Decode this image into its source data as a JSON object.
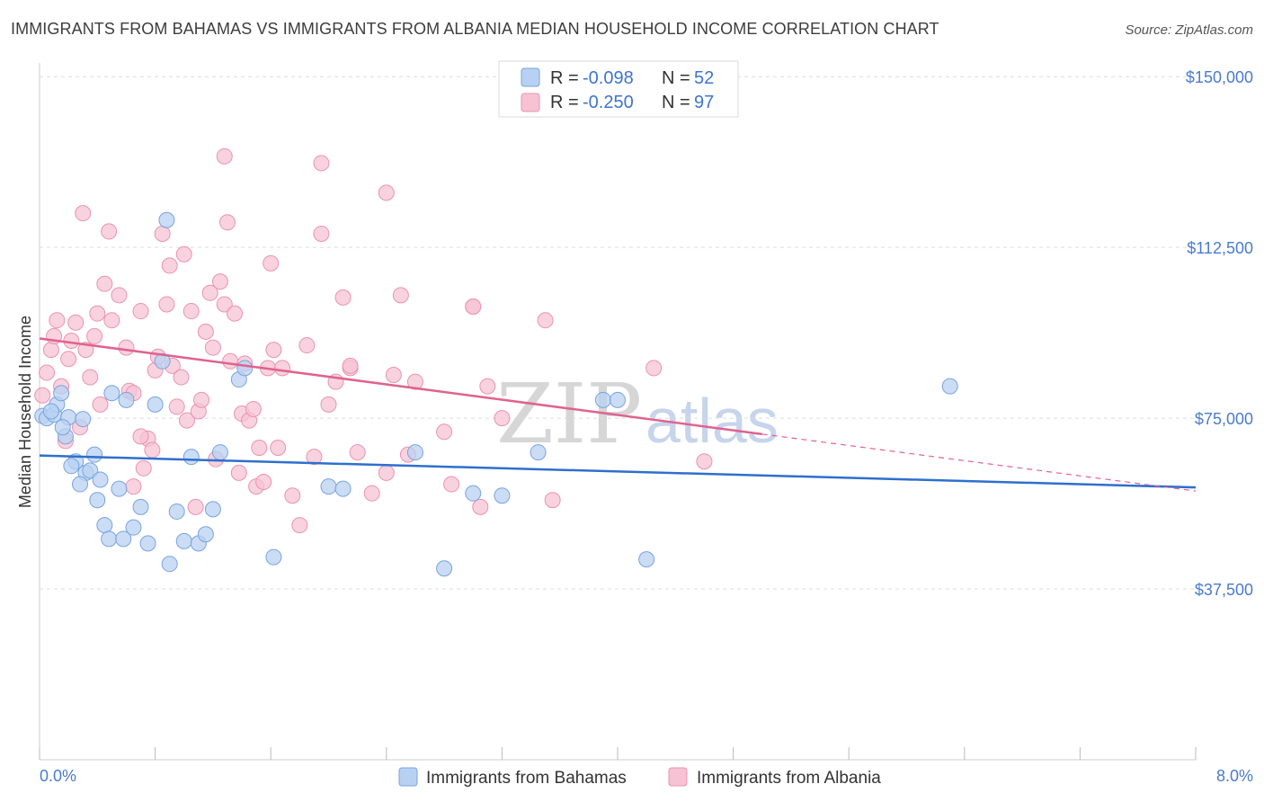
{
  "title": "IMMIGRANTS FROM BAHAMAS VS IMMIGRANTS FROM ALBANIA MEDIAN HOUSEHOLD INCOME CORRELATION CHART",
  "source": "Source: ZipAtlas.com",
  "watermark": {
    "zip": "ZIP",
    "atlas": "atlas"
  },
  "colors": {
    "bahamas_fill": "#b8d1f2",
    "bahamas_stroke": "#7aa3e0",
    "bahamas_line": "#2e6fce",
    "albania_fill": "#f7c3d4",
    "albania_stroke": "#ea93b0",
    "albania_line": "#e0628f",
    "axis_label": "#4a7bd0",
    "grid": "#dcdcdc"
  },
  "legend": {
    "rows": [
      {
        "r_label": "R = ",
        "r_value": "-0.098",
        "n_label": "N = ",
        "n_value": "52"
      },
      {
        "r_label": "R = ",
        "r_value": "-0.250",
        "n_label": "N = ",
        "n_value": "97"
      }
    ]
  },
  "bottom_legend": [
    "Immigrants from Bahamas",
    "Immigrants from Albania"
  ],
  "chart_data": {
    "type": "scatter",
    "title": "IMMIGRANTS FROM BAHAMAS VS IMMIGRANTS FROM ALBANIA MEDIAN HOUSEHOLD INCOME CORRELATION CHART",
    "xlabel": "",
    "ylabel": "Median Household Income",
    "xlim": [
      0,
      8.0
    ],
    "ylim": [
      0,
      153000
    ],
    "x_tick_labels": [
      "0.0%",
      "8.0%"
    ],
    "y_ticks": [
      37500,
      75000,
      112500,
      150000
    ],
    "y_tick_labels": [
      "$37,500",
      "$75,000",
      "$112,500",
      "$150,000"
    ],
    "grid": true,
    "legend_position": "top-center",
    "series": [
      {
        "name": "Immigrants from Bahamas",
        "r": -0.098,
        "n": 52,
        "trend": {
          "x": [
            0.0,
            8.0
          ],
          "y": [
            66800,
            59800
          ]
        },
        "points": [
          [
            0.02,
            75500
          ],
          [
            0.05,
            75000
          ],
          [
            0.1,
            75800
          ],
          [
            0.12,
            78000
          ],
          [
            0.15,
            80500
          ],
          [
            0.08,
            76500
          ],
          [
            0.2,
            75200
          ],
          [
            0.18,
            71000
          ],
          [
            0.25,
            65500
          ],
          [
            0.22,
            64500
          ],
          [
            0.3,
            74800
          ],
          [
            0.32,
            63000
          ],
          [
            0.28,
            60500
          ],
          [
            0.35,
            63500
          ],
          [
            0.38,
            67000
          ],
          [
            0.4,
            57000
          ],
          [
            0.42,
            61500
          ],
          [
            0.45,
            51500
          ],
          [
            0.48,
            48500
          ],
          [
            0.5,
            80500
          ],
          [
            0.55,
            59500
          ],
          [
            0.58,
            48500
          ],
          [
            0.6,
            79000
          ],
          [
            0.65,
            51000
          ],
          [
            0.7,
            55500
          ],
          [
            0.75,
            47500
          ],
          [
            0.8,
            78000
          ],
          [
            0.85,
            87500
          ],
          [
            0.9,
            43000
          ],
          [
            0.95,
            54500
          ],
          [
            1.0,
            48000
          ],
          [
            1.05,
            66500
          ],
          [
            1.1,
            47500
          ],
          [
            1.15,
            49500
          ],
          [
            1.2,
            55000
          ],
          [
            1.25,
            67500
          ],
          [
            0.88,
            118500
          ],
          [
            1.38,
            83500
          ],
          [
            1.62,
            44500
          ],
          [
            2.0,
            60000
          ],
          [
            2.1,
            59500
          ],
          [
            2.6,
            67500
          ],
          [
            2.8,
            42000
          ],
          [
            3.0,
            58500
          ],
          [
            3.2,
            58000
          ],
          [
            3.45,
            67500
          ],
          [
            3.9,
            79000
          ],
          [
            4.0,
            79000
          ],
          [
            4.2,
            44000
          ],
          [
            6.3,
            82000
          ],
          [
            1.42,
            86000
          ],
          [
            0.16,
            73000
          ]
        ]
      },
      {
        "name": "Immigrants from Albania",
        "r": -0.25,
        "n": 97,
        "trend": {
          "x": [
            0.0,
            5.0
          ],
          "y": [
            92500,
            71500
          ]
        },
        "trend_dashed": {
          "x": [
            5.0,
            8.0
          ],
          "y": [
            71500,
            59000
          ]
        },
        "points": [
          [
            0.02,
            80000
          ],
          [
            0.05,
            85000
          ],
          [
            0.08,
            90000
          ],
          [
            0.1,
            93000
          ],
          [
            0.12,
            96500
          ],
          [
            0.15,
            82000
          ],
          [
            0.18,
            70000
          ],
          [
            0.2,
            88000
          ],
          [
            0.22,
            92000
          ],
          [
            0.25,
            96000
          ],
          [
            0.28,
            73000
          ],
          [
            0.3,
            120000
          ],
          [
            0.32,
            90000
          ],
          [
            0.35,
            84000
          ],
          [
            0.38,
            93000
          ],
          [
            0.4,
            98000
          ],
          [
            0.42,
            78000
          ],
          [
            0.45,
            104500
          ],
          [
            0.48,
            116000
          ],
          [
            0.5,
            96500
          ],
          [
            0.55,
            102000
          ],
          [
            0.6,
            90500
          ],
          [
            0.62,
            81000
          ],
          [
            0.65,
            80500
          ],
          [
            0.7,
            98500
          ],
          [
            0.72,
            64000
          ],
          [
            0.75,
            70500
          ],
          [
            0.78,
            68000
          ],
          [
            0.8,
            85500
          ],
          [
            0.82,
            88500
          ],
          [
            0.85,
            115500
          ],
          [
            0.88,
            100000
          ],
          [
            0.9,
            108500
          ],
          [
            0.92,
            86500
          ],
          [
            0.95,
            77500
          ],
          [
            0.98,
            84000
          ],
          [
            1.0,
            111000
          ],
          [
            1.02,
            74500
          ],
          [
            1.05,
            98500
          ],
          [
            1.08,
            55500
          ],
          [
            1.1,
            76500
          ],
          [
            1.12,
            79000
          ],
          [
            1.15,
            94000
          ],
          [
            1.18,
            102500
          ],
          [
            1.2,
            90500
          ],
          [
            1.22,
            66000
          ],
          [
            1.25,
            105000
          ],
          [
            1.28,
            100000
          ],
          [
            1.3,
            118000
          ],
          [
            1.32,
            87500
          ],
          [
            1.35,
            98000
          ],
          [
            1.38,
            63000
          ],
          [
            1.4,
            76000
          ],
          [
            1.42,
            87000
          ],
          [
            1.45,
            74500
          ],
          [
            1.48,
            77000
          ],
          [
            1.5,
            60000
          ],
          [
            1.52,
            68500
          ],
          [
            1.55,
            61000
          ],
          [
            1.58,
            86000
          ],
          [
            1.6,
            109000
          ],
          [
            1.62,
            90000
          ],
          [
            1.65,
            68500
          ],
          [
            1.68,
            86000
          ],
          [
            1.75,
            58000
          ],
          [
            1.8,
            51500
          ],
          [
            1.85,
            91000
          ],
          [
            1.9,
            66500
          ],
          [
            1.95,
            115500
          ],
          [
            2.0,
            78000
          ],
          [
            2.05,
            83000
          ],
          [
            2.1,
            101500
          ],
          [
            2.15,
            86000
          ],
          [
            2.2,
            67500
          ],
          [
            2.3,
            58500
          ],
          [
            2.4,
            63000
          ],
          [
            2.45,
            84500
          ],
          [
            2.5,
            102000
          ],
          [
            2.55,
            67000
          ],
          [
            2.6,
            83000
          ],
          [
            2.8,
            72000
          ],
          [
            2.85,
            60500
          ],
          [
            3.0,
            99500
          ],
          [
            3.05,
            55500
          ],
          [
            3.1,
            82000
          ],
          [
            3.2,
            75000
          ],
          [
            3.5,
            96500
          ],
          [
            3.55,
            57000
          ],
          [
            4.25,
            86000
          ],
          [
            4.6,
            65500
          ],
          [
            1.28,
            132500
          ],
          [
            1.95,
            131000
          ],
          [
            2.4,
            124500
          ],
          [
            3.0,
            99500
          ],
          [
            0.65,
            60000
          ],
          [
            0.7,
            71000
          ],
          [
            2.15,
            86500
          ]
        ]
      }
    ]
  }
}
